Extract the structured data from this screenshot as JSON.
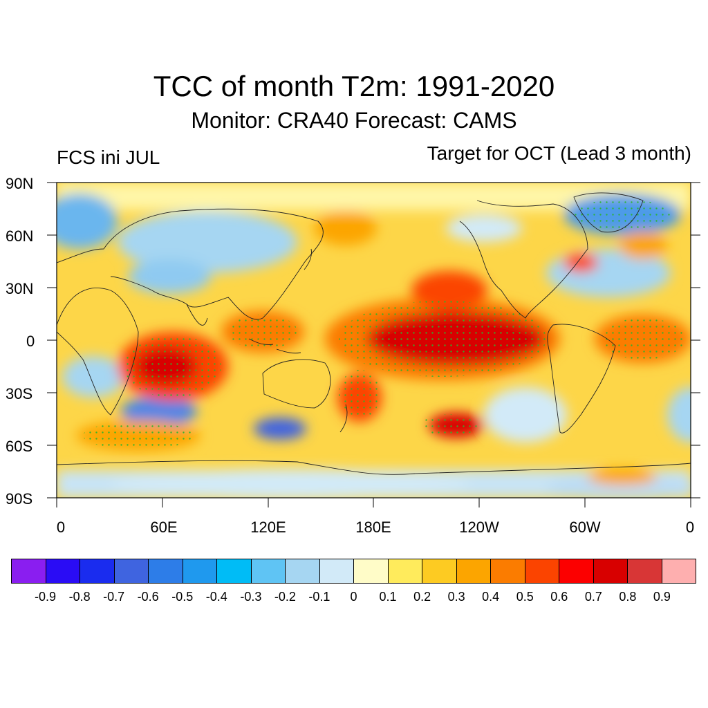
{
  "title": "TCC of month T2m: 1991-2020",
  "subtitle": "Monitor: CRA40   Forecast: CAMS",
  "left_label": "FCS ini JUL",
  "right_label": "Target for OCT (Lead 3 month)",
  "lat_labels": [
    "90N",
    "60N",
    "30N",
    "0",
    "30S",
    "60S",
    "90S"
  ],
  "lon_labels": [
    "0",
    "60E",
    "120E",
    "180E",
    "120W",
    "60W",
    "0"
  ],
  "legend": {
    "colors": [
      "#8a1ef0",
      "#2a0cf5",
      "#1a2cef",
      "#3f64e0",
      "#2d7de8",
      "#1f99ee",
      "#00bcf6",
      "#5fc4f4",
      "#a6d6f2",
      "#d2eaf8",
      "#fffcc8",
      "#ffeb5c",
      "#fdcb22",
      "#fca500",
      "#fb7c00",
      "#fb4400",
      "#fc0000",
      "#d80000",
      "#d83636",
      "#feafaf"
    ],
    "labels": [
      "-0.9",
      "-0.8",
      "-0.7",
      "-0.6",
      "-0.5",
      "-0.4",
      "-0.3",
      "-0.2",
      "-0.1",
      "0",
      "0.1",
      "0.2",
      "0.3",
      "0.4",
      "0.5",
      "0.6",
      "0.7",
      "0.8",
      "0.9"
    ]
  }
}
